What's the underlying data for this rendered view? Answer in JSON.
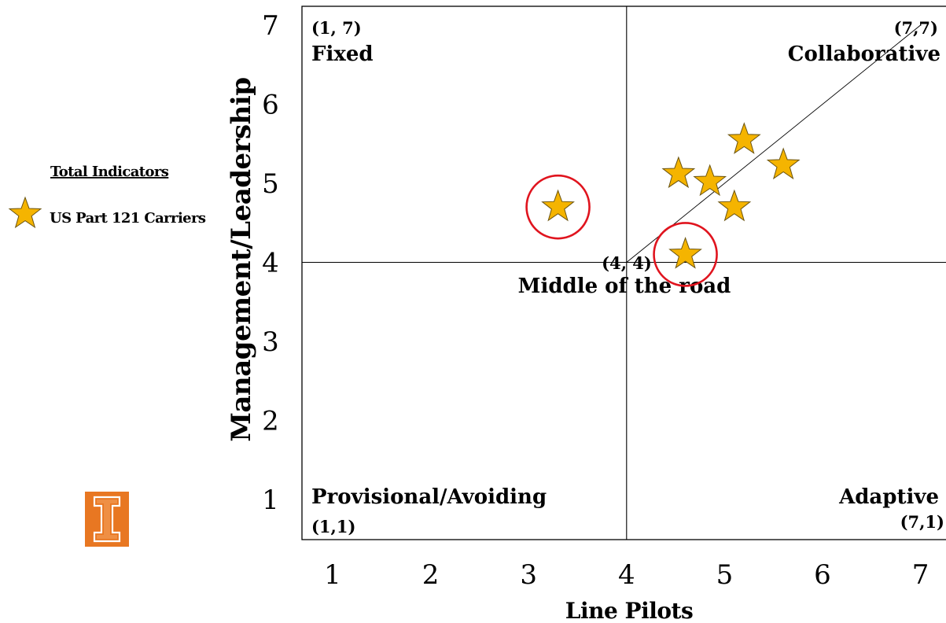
{
  "chart_data": {
    "type": "scatter",
    "title": "",
    "xlabel": "Line Pilots",
    "ylabel": "Management/Leadership",
    "xlim": [
      0.7,
      7.25
    ],
    "ylim": [
      0.55,
      7.35
    ],
    "x_ticks": [
      1,
      2,
      3,
      4,
      5,
      6,
      7
    ],
    "y_ticks": [
      1,
      2,
      3,
      4,
      5,
      6,
      7
    ],
    "grid": false,
    "legend_position": "left",
    "legend_title": "Total Indicators",
    "series": [
      {
        "name": "US Part 121 Carriers",
        "color": "#F5B400",
        "marker": "star",
        "points": [
          {
            "x": 3.3,
            "y": 4.7,
            "highlighted": true
          },
          {
            "x": 4.6,
            "y": 4.1,
            "highlighted": true
          },
          {
            "x": 4.53,
            "y": 5.12,
            "highlighted": false
          },
          {
            "x": 4.85,
            "y": 5.02,
            "highlighted": false
          },
          {
            "x": 5.2,
            "y": 5.55,
            "highlighted": false
          },
          {
            "x": 5.6,
            "y": 5.23,
            "highlighted": false
          },
          {
            "x": 5.1,
            "y": 4.7,
            "highlighted": false
          }
        ]
      }
    ],
    "reference_lines": [
      {
        "type": "vertical",
        "x": 4
      },
      {
        "type": "horizontal",
        "y": 4
      },
      {
        "type": "diagonal",
        "from": [
          4,
          4
        ],
        "to": [
          7,
          7
        ]
      }
    ],
    "highlight_color": "#E0141E",
    "annotations": {
      "fixed": {
        "coord": "(1, 7)",
        "label": "Fixed",
        "x": 1,
        "y": 7
      },
      "collaborative": {
        "coord": "(7,7)",
        "label": "Collaborative",
        "x": 7,
        "y": 7
      },
      "middle": {
        "coord": "(4, 4)",
        "label": "Middle of the road",
        "x": 4,
        "y": 4
      },
      "provisional": {
        "coord": "(1,1)",
        "label": "Provisional/Avoiding",
        "x": 1,
        "y": 1
      },
      "adaptive": {
        "coord": "(7,1)",
        "label": "Adaptive",
        "x": 7,
        "y": 1
      }
    }
  },
  "logo": {
    "name": "university-block-i-logo",
    "color": "#E87722"
  }
}
